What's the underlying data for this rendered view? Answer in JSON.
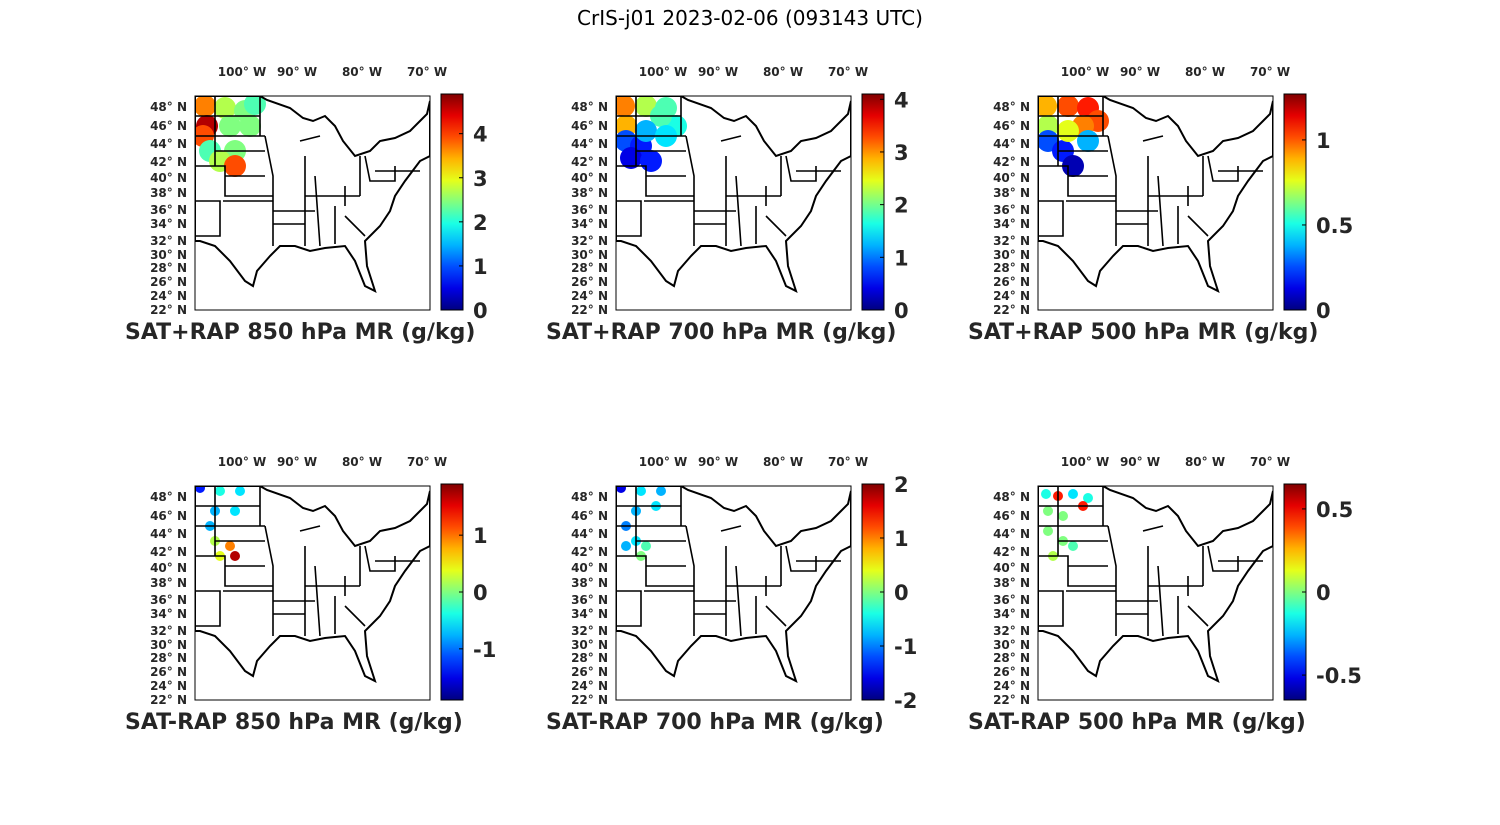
{
  "figure_title": "CrIS-j01 2023-02-06 (093143 UTC)",
  "lon_labels": [
    "100° W",
    "90° W",
    "80° W",
    "70° W"
  ],
  "lat_labels": [
    "48° N",
    "46° N",
    "44° N",
    "42° N",
    "40° N",
    "38° N",
    "36° N",
    "34° N",
    "32° N",
    "30° N",
    "28° N",
    "26° N",
    "24° N",
    "22° N"
  ],
  "chart_data": [
    {
      "type": "map",
      "title": "SAT+RAP 850 hPa MR (g/kg)",
      "colormap": "jet",
      "clim": [
        0,
        4.9
      ],
      "ticks": [
        "0",
        "1",
        "2",
        "3",
        "4"
      ]
    },
    {
      "type": "map",
      "title": "SAT+RAP 700 hPa MR (g/kg)",
      "colormap": "jet",
      "clim": [
        0,
        4.1
      ],
      "ticks": [
        "0",
        "1",
        "2",
        "3",
        "4"
      ]
    },
    {
      "type": "map",
      "title": "SAT+RAP 500 hPa MR (g/kg)",
      "colormap": "jet",
      "clim": [
        0,
        1.27
      ],
      "ticks": [
        "0",
        "0.5",
        "1"
      ]
    },
    {
      "type": "map",
      "title": "SAT-RAP 850 hPa MR (g/kg)",
      "colormap": "jet",
      "clim": [
        -1.9,
        1.9
      ],
      "ticks": [
        "-1",
        "0",
        "1"
      ]
    },
    {
      "type": "map",
      "title": "SAT-RAP 700 hPa MR (g/kg)",
      "colormap": "jet",
      "clim": [
        -2,
        2
      ],
      "ticks": [
        "-2",
        "-1",
        "0",
        "1",
        "2"
      ]
    },
    {
      "type": "map",
      "title": "SAT-RAP 500 hPa MR (g/kg)",
      "colormap": "jet",
      "clim": [
        -0.65,
        0.65
      ],
      "ticks": [
        "-0.5",
        "0",
        "0.5"
      ]
    }
  ]
}
